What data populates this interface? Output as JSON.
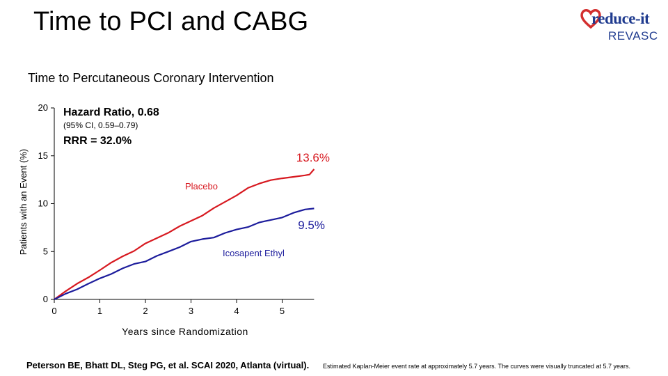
{
  "slide": {
    "title": "Time to PCI and CABG",
    "citation": "Peterson BE, Bhatt DL, Steg PG, et al. SCAI 2020, Atlanta (virtual).",
    "note": "Estimated Kaplan-Meier event rate at approximately 5.7 years. The curves were visually truncated at 5.7 years."
  },
  "logo": {
    "line1": "reduce-it",
    "line2": "REVASC",
    "heart_color": "#d32f2f",
    "text_color": "#1f3b8f"
  },
  "chart_data": {
    "type": "line",
    "title": "Time to Percutaneous Coronary Intervention",
    "xlabel": "Years since Randomization",
    "ylabel": "Patients with an Event (%)",
    "xlim": [
      0,
      5.7
    ],
    "ylim": [
      0,
      20
    ],
    "xticks": [
      0,
      1,
      2,
      3,
      4,
      5
    ],
    "yticks": [
      0,
      5,
      10,
      15,
      20
    ],
    "annotations": {
      "hazard_ratio": "Hazard Ratio, 0.68",
      "ci": "(95% CI, 0.59–0.79)",
      "rrr": "RRR = 32.0%"
    },
    "series": [
      {
        "name": "Placebo",
        "color": "#d71920",
        "end_label": "13.6%",
        "x": [
          0,
          0.25,
          0.5,
          0.75,
          1.0,
          1.25,
          1.5,
          1.75,
          2.0,
          2.25,
          2.5,
          2.75,
          3.0,
          3.25,
          3.5,
          3.75,
          4.0,
          4.25,
          4.5,
          4.75,
          5.0,
          5.25,
          5.5,
          5.6,
          5.7
        ],
        "values": [
          0,
          0.9,
          1.6,
          2.3,
          3.1,
          3.8,
          4.5,
          5.1,
          5.8,
          6.4,
          7.0,
          7.6,
          8.2,
          8.8,
          9.5,
          10.2,
          10.9,
          11.6,
          12.1,
          12.5,
          12.6,
          12.8,
          13.0,
          13.0,
          13.6
        ]
      },
      {
        "name": "Icosapent Ethyl",
        "color": "#1c1c9c",
        "end_label": "9.5%",
        "x": [
          0,
          0.25,
          0.5,
          0.75,
          1.0,
          1.25,
          1.5,
          1.75,
          2.0,
          2.25,
          2.5,
          2.75,
          3.0,
          3.25,
          3.5,
          3.75,
          4.0,
          4.25,
          4.5,
          4.75,
          5.0,
          5.25,
          5.5,
          5.7
        ],
        "values": [
          0,
          0.6,
          1.1,
          1.6,
          2.2,
          2.7,
          3.2,
          3.7,
          4.0,
          4.5,
          5.0,
          5.5,
          6.0,
          6.3,
          6.5,
          6.9,
          7.3,
          7.6,
          8.0,
          8.3,
          8.6,
          9.0,
          9.4,
          9.5
        ]
      }
    ]
  }
}
